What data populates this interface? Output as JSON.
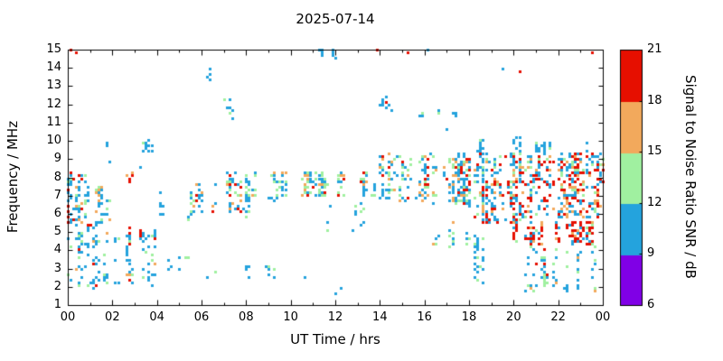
{
  "chart_data": {
    "type": "scatter",
    "title": "2025-07-14",
    "xlabel": "UT Time / hrs",
    "ylabel": "Frequency / MHz",
    "xlim": [
      0,
      24
    ],
    "ylim": [
      1,
      15
    ],
    "grid": false,
    "marker_px": 3,
    "x_ticks": {
      "values": [
        0,
        2,
        4,
        6,
        8,
        10,
        12,
        14,
        16,
        18,
        20,
        22,
        24
      ],
      "labels": [
        "00",
        "02",
        "04",
        "06",
        "08",
        "10",
        "12",
        "14",
        "16",
        "18",
        "20",
        "22",
        "00"
      ],
      "minor_interval": 1
    },
    "y_ticks": {
      "values": [
        1,
        2,
        3,
        4,
        5,
        6,
        7,
        8,
        9,
        10,
        11,
        12,
        13,
        14,
        15
      ],
      "labels": [
        "1",
        "2",
        "3",
        "4",
        "5",
        "6",
        "7",
        "8",
        "9",
        "10",
        "11",
        "12",
        "13",
        "14",
        "15"
      ]
    },
    "colorbar": {
      "label": "Signal to Noise Ratio SNR / dB",
      "min": 6,
      "max": 21,
      "ticks": [
        6,
        9,
        12,
        15,
        18,
        21
      ],
      "bins": [
        {
          "min": 6,
          "max": 9,
          "color": "#8000E6"
        },
        {
          "min": 9,
          "max": 12,
          "color": "#24A3DD"
        },
        {
          "min": 12,
          "max": 15,
          "color": "#A0F0A0"
        },
        {
          "min": 15,
          "max": 18,
          "color": "#F2A95C"
        },
        {
          "min": 18,
          "max": 21,
          "color": "#E60F00"
        }
      ]
    },
    "note": "Dense SNR scatter approximated from screenshot as clusters (x-range hrs, y-range MHz, point count, SNR-bin weights) plus notable single points [hr, MHz, SNR].",
    "clusters": [
      {
        "x": [
          0.0,
          0.8
        ],
        "y": [
          5.6,
          8.3
        ],
        "n": 70,
        "w": [
          [
            9,
            0.45
          ],
          [
            12,
            0.2
          ],
          [
            15,
            0.12
          ],
          [
            18,
            0.23
          ]
        ]
      },
      {
        "x": [
          0.0,
          1.3
        ],
        "y": [
          2.0,
          5.6
        ],
        "n": 55,
        "w": [
          [
            9,
            0.7
          ],
          [
            12,
            0.2
          ],
          [
            15,
            0.07
          ],
          [
            18,
            0.03
          ]
        ]
      },
      {
        "x": [
          0.7,
          2.3
        ],
        "y": [
          5.4,
          7.6
        ],
        "n": 50,
        "w": [
          [
            9,
            0.55
          ],
          [
            12,
            0.25
          ],
          [
            15,
            0.12
          ],
          [
            18,
            0.08
          ]
        ]
      },
      {
        "x": [
          1.2,
          3.9
        ],
        "y": [
          2.0,
          5.0
        ],
        "n": 75,
        "w": [
          [
            9,
            0.72
          ],
          [
            12,
            0.2
          ],
          [
            15,
            0.05
          ],
          [
            18,
            0.03
          ]
        ]
      },
      {
        "x": [
          1.4,
          4.6
        ],
        "y": [
          9.3,
          10.1
        ],
        "n": 18,
        "w": [
          [
            9,
            0.85
          ],
          [
            12,
            0.15
          ]
        ]
      },
      {
        "x": [
          2.3,
          3.1
        ],
        "y": [
          7.8,
          8.25
        ],
        "n": 6,
        "w": [
          [
            18,
            0.7
          ],
          [
            15,
            0.3
          ]
        ]
      },
      {
        "x": [
          2.5,
          4.3
        ],
        "y": [
          4.2,
          5.2
        ],
        "n": 16,
        "w": [
          [
            9,
            0.45
          ],
          [
            12,
            0.3
          ],
          [
            18,
            0.25
          ]
        ]
      },
      {
        "x": [
          4.0,
          6.0
        ],
        "y": [
          5.7,
          7.3
        ],
        "n": 26,
        "w": [
          [
            9,
            0.6
          ],
          [
            12,
            0.2
          ],
          [
            15,
            0.2
          ]
        ]
      },
      {
        "x": [
          5.8,
          7.7
        ],
        "y": [
          6.2,
          8.3
        ],
        "n": 50,
        "w": [
          [
            9,
            0.45
          ],
          [
            12,
            0.15
          ],
          [
            15,
            0.22
          ],
          [
            18,
            0.18
          ]
        ]
      },
      {
        "x": [
          6.0,
          6.6
        ],
        "y": [
          12.7,
          14.2
        ],
        "n": 6,
        "w": [
          [
            9,
            1.0
          ]
        ]
      },
      {
        "x": [
          6.9,
          7.7
        ],
        "y": [
          11.2,
          12.4
        ],
        "n": 8,
        "w": [
          [
            9,
            0.85
          ],
          [
            12,
            0.15
          ]
        ]
      },
      {
        "x": [
          7.7,
          10.0
        ],
        "y": [
          6.8,
          8.3
        ],
        "n": 48,
        "w": [
          [
            9,
            0.6
          ],
          [
            12,
            0.3
          ],
          [
            15,
            0.1
          ]
        ]
      },
      {
        "x": [
          7.9,
          8.15
        ],
        "y": [
          5.9,
          8.0
        ],
        "n": 12,
        "w": [
          [
            9,
            0.8
          ],
          [
            12,
            0.2
          ]
        ]
      },
      {
        "x": [
          7.8,
          9.4
        ],
        "y": [
          2.4,
          3.3
        ],
        "n": 10,
        "w": [
          [
            9,
            0.9
          ],
          [
            12,
            0.1
          ]
        ]
      },
      {
        "x": [
          10.0,
          14.0
        ],
        "y": [
          7.0,
          8.35
        ],
        "n": 115,
        "w": [
          [
            9,
            0.52
          ],
          [
            12,
            0.27
          ],
          [
            15,
            0.13
          ],
          [
            18,
            0.08
          ]
        ]
      },
      {
        "x": [
          10.2,
          12.6
        ],
        "y": [
          14.55,
          15.05
        ],
        "n": 9,
        "w": [
          [
            9,
            0.9
          ],
          [
            12,
            0.1
          ]
        ]
      },
      {
        "x": [
          13.4,
          14.6
        ],
        "y": [
          11.6,
          12.45
        ],
        "n": 10,
        "w": [
          [
            9,
            0.9
          ],
          [
            12,
            0.1
          ]
        ]
      },
      {
        "x": [
          14.0,
          16.0
        ],
        "y": [
          6.8,
          9.25
        ],
        "n": 95,
        "w": [
          [
            9,
            0.5
          ],
          [
            12,
            0.25
          ],
          [
            15,
            0.15
          ],
          [
            18,
            0.1
          ]
        ]
      },
      {
        "x": [
          16.0,
          18.05
        ],
        "y": [
          6.5,
          9.3
        ],
        "n": 145,
        "w": [
          [
            9,
            0.45
          ],
          [
            12,
            0.2
          ],
          [
            15,
            0.15
          ],
          [
            18,
            0.2
          ]
        ]
      },
      {
        "x": [
          15.8,
          17.4
        ],
        "y": [
          11.3,
          11.75
        ],
        "n": 10,
        "w": [
          [
            9,
            0.9
          ],
          [
            12,
            0.1
          ]
        ]
      },
      {
        "x": [
          16.2,
          18.0
        ],
        "y": [
          4.2,
          5.6
        ],
        "n": 18,
        "w": [
          [
            9,
            0.6
          ],
          [
            12,
            0.3
          ],
          [
            15,
            0.1
          ]
        ]
      },
      {
        "x": [
          18.05,
          20.25
        ],
        "y": [
          5.5,
          9.4
        ],
        "n": 210,
        "w": [
          [
            9,
            0.44
          ],
          [
            12,
            0.15
          ],
          [
            15,
            0.13
          ],
          [
            18,
            0.28
          ]
        ]
      },
      {
        "x": [
          18.3,
          20.3
        ],
        "y": [
          9.4,
          10.2
        ],
        "n": 30,
        "w": [
          [
            9,
            0.8
          ],
          [
            12,
            0.2
          ]
        ]
      },
      {
        "x": [
          18.2,
          19.9
        ],
        "y": [
          2.2,
          4.8
        ],
        "n": 26,
        "w": [
          [
            9,
            0.75
          ],
          [
            12,
            0.25
          ]
        ]
      },
      {
        "x": [
          20.25,
          23.95
        ],
        "y": [
          5.8,
          9.35
        ],
        "n": 340,
        "w": [
          [
            9,
            0.4
          ],
          [
            12,
            0.13
          ],
          [
            15,
            0.13
          ],
          [
            18,
            0.34
          ]
        ]
      },
      {
        "x": [
          20.0,
          23.6
        ],
        "y": [
          4.3,
          5.6
        ],
        "n": 135,
        "w": [
          [
            18,
            0.55
          ],
          [
            15,
            0.12
          ],
          [
            12,
            0.08
          ],
          [
            9,
            0.25
          ]
        ]
      },
      {
        "x": [
          20.3,
          23.95
        ],
        "y": [
          9.4,
          9.95
        ],
        "n": 28,
        "w": [
          [
            9,
            0.85
          ],
          [
            12,
            0.15
          ]
        ]
      },
      {
        "x": [
          20.3,
          23.9
        ],
        "y": [
          1.6,
          4.2
        ],
        "n": 70,
        "w": [
          [
            9,
            0.6
          ],
          [
            12,
            0.27
          ],
          [
            15,
            0.09
          ],
          [
            18,
            0.04
          ]
        ]
      },
      {
        "x": [
          10.5,
          13.6
        ],
        "y": [
          5.0,
          6.6
        ],
        "n": 12,
        "w": [
          [
            9,
            0.8
          ],
          [
            12,
            0.2
          ]
        ]
      },
      {
        "x": [
          4.3,
          5.4
        ],
        "y": [
          2.7,
          3.7
        ],
        "n": 7,
        "w": [
          [
            9,
            0.85
          ],
          [
            12,
            0.15
          ]
        ]
      }
    ],
    "singles": [
      [
        0.15,
        14.95,
        19
      ],
      [
        0.35,
        14.9,
        19
      ],
      [
        13.9,
        15.0,
        20
      ],
      [
        15.25,
        14.9,
        20
      ],
      [
        16.1,
        14.95,
        10
      ],
      [
        14.2,
        12.15,
        20
      ],
      [
        12.05,
        1.7,
        10
      ],
      [
        12.25,
        1.9,
        10
      ],
      [
        19.5,
        13.9,
        10
      ],
      [
        20.3,
        13.85,
        20
      ],
      [
        23.55,
        14.9,
        20
      ],
      [
        9.0,
        2.7,
        10
      ],
      [
        10.6,
        2.5,
        10
      ],
      [
        6.2,
        2.6,
        10
      ],
      [
        6.6,
        2.9,
        13
      ],
      [
        3.3,
        8.6,
        10
      ],
      [
        1.9,
        8.9,
        10
      ],
      [
        17.0,
        10.6,
        10
      ]
    ]
  }
}
